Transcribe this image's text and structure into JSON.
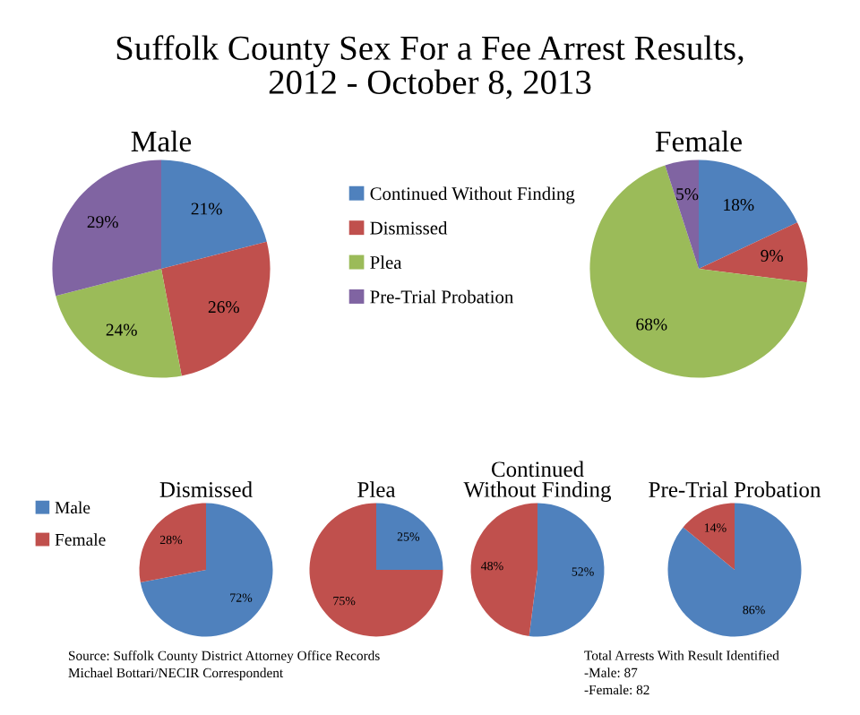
{
  "chart_data": [
    {
      "type": "other",
      "title": "Suffolk County Sex For a Fee Arrest Results,\n2012 - October 8, 2013",
      "annotations": [
        "Source: Suffolk County District Attorney Office Records\nMichael Bottari/NECIR Correspondent",
        "Total Arrests With Result Identified\n-Male: 87\n-Female: 82"
      ]
    },
    {
      "type": "pie",
      "title": "Male",
      "categories": [
        "Continued Without Finding",
        "Dismissed",
        "Plea",
        "Pre-Trial Probation"
      ],
      "values": [
        21,
        26,
        24,
        29
      ],
      "colors": [
        "#4f81bd",
        "#c0504d",
        "#9bbb59",
        "#8064a2"
      ],
      "value_labels": [
        "21%",
        "26%",
        "24%",
        "29%"
      ],
      "legend": "right"
    },
    {
      "type": "pie",
      "title": "Female",
      "categories": [
        null,
        null,
        null,
        null
      ],
      "values": [
        18,
        9,
        68,
        5
      ],
      "colors": [
        "#4f81bd",
        "#c0504d",
        "#9bbb59",
        "#8064a2"
      ],
      "value_labels": [
        "18%",
        "9%",
        "68%",
        "5%"
      ]
    },
    {
      "type": "pie",
      "title": "Dismissed",
      "categories": [
        "Male",
        "Female"
      ],
      "values": [
        72,
        28
      ],
      "colors": [
        "#4f81bd",
        "#c0504d"
      ],
      "value_labels": [
        "72%",
        "28%"
      ],
      "legend": "left"
    },
    {
      "type": "pie",
      "title": "Plea",
      "categories": [
        null,
        null
      ],
      "values": [
        25,
        75
      ],
      "colors": [
        "#4f81bd",
        "#c0504d"
      ],
      "value_labels": [
        "25%",
        "75%"
      ]
    },
    {
      "type": "pie",
      "title": "Continued\nWithout Finding",
      "categories": [
        null,
        null
      ],
      "values": [
        52,
        48
      ],
      "colors": [
        "#4f81bd",
        "#c0504d"
      ],
      "value_labels": [
        "52%",
        "48%"
      ]
    },
    {
      "type": "pie",
      "title": "Pre-Trial Probation",
      "categories": [
        null,
        null
      ],
      "values": [
        86,
        14
      ],
      "colors": [
        "#4f81bd",
        "#c0504d"
      ],
      "value_labels": [
        "86%",
        "14%"
      ]
    }
  ]
}
